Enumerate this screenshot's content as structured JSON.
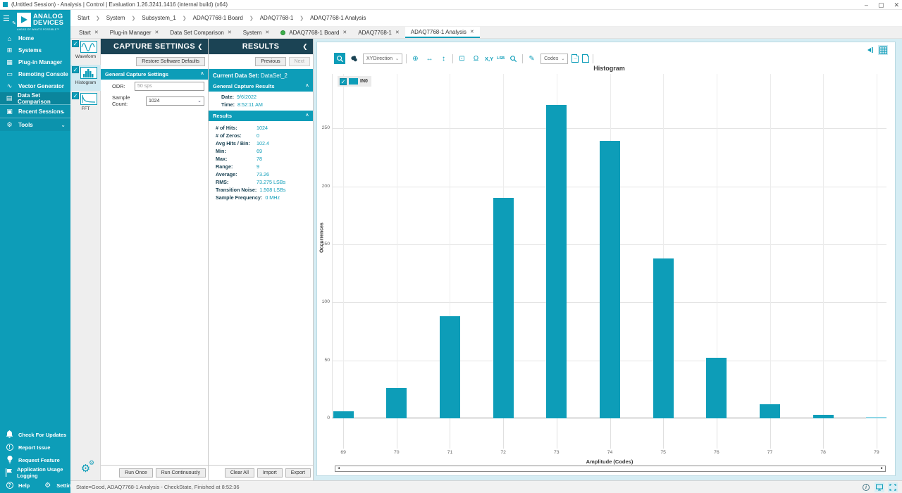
{
  "window": {
    "title": "(Untitled Session) - Analysis | Control | Evaluation 1.26.3241.1416 (internal build) (x64)",
    "controls": {
      "minimize": "–",
      "maximize": "▢",
      "close": "✕"
    }
  },
  "ui": {
    "close_glyph": "✕",
    "breadcrumb_separator": "❯",
    "chevron_up": "˄",
    "chevron_down": "⌄",
    "collapse_left": "❮",
    "check_glyph": "✓",
    "menu_glyph": "☰",
    "pen_glyph": "✎",
    "scroll_left": "◄",
    "scroll_right": "►"
  },
  "colors": {
    "accent": "#0d9db8",
    "panel_header": "#1b4354",
    "pale_background": "#d6edf4",
    "status_green": "#3cae4a"
  },
  "breadcrumb": {
    "items": [
      "Start",
      "System",
      "Subsystem_1",
      "ADAQ7768-1 Board",
      "ADAQ7768-1",
      "ADAQ7768-1 Analysis"
    ]
  },
  "tabs": {
    "items": [
      {
        "label": "Start"
      },
      {
        "label": "Plug-in Manager"
      },
      {
        "label": "Data Set Comparison"
      },
      {
        "label": "System"
      },
      {
        "label": "ADAQ7768-1 Board"
      },
      {
        "label": "ADAQ7768-1"
      },
      {
        "label": "ADAQ7768-1 Analysis"
      }
    ]
  },
  "sidebar": {
    "logo": {
      "line1": "ANALOG",
      "line2": "DEVICES",
      "tagline": "AHEAD OF WHAT'S POSSIBLE™"
    },
    "items": [
      {
        "icon": "⌂",
        "label": "Home"
      },
      {
        "icon": "⊞",
        "label": "Systems"
      },
      {
        "icon": "▦",
        "label": "Plug-in Manager"
      },
      {
        "icon": "▭",
        "label": "Remoting Console"
      },
      {
        "icon": "∿",
        "label": "Vector Generator"
      },
      {
        "icon": "▤",
        "label": "Data Set Comparison"
      },
      {
        "icon": "▣",
        "label": "Recent Sessions"
      },
      {
        "icon": "⚙",
        "label": "Tools"
      }
    ],
    "footer": [
      {
        "label": "Check For Updates"
      },
      {
        "glyph": "!",
        "label": "Report Issue"
      },
      {
        "label": "Request Feature"
      },
      {
        "label": "Application Usage Logging"
      },
      {
        "glyph": "?",
        "label": "Help"
      },
      {
        "icon": "⚙",
        "label": "Settings"
      }
    ]
  },
  "tool_strip": {
    "items": [
      {
        "label": "Waveform"
      },
      {
        "label": "Histogram"
      },
      {
        "label": "FFT"
      }
    ]
  },
  "capture_settings": {
    "title": "CAPTURE SETTINGS",
    "restore_button": "Restore Software Defaults",
    "section": "General Capture Settings",
    "odr_label": "ODR:",
    "odr_value": "50 sps",
    "sample_count_label": "Sample Count:",
    "sample_count_value": "1024",
    "run_once": "Run Once",
    "run_continuously": "Run Continuously"
  },
  "results": {
    "title": "RESULTS",
    "previous": "Previous",
    "next": "Next",
    "current_data_set_label": "Current Data Set:",
    "current_data_set": "DataSet_2",
    "general_section": "General Capture Results",
    "date_label": "Date:",
    "date": "9/6/2022",
    "time_label": "Time:",
    "time": "8:52:11 AM",
    "results_section": "Results",
    "rows": [
      {
        "label": "# of Hits:",
        "value": "1024"
      },
      {
        "label": "# of Zeros:",
        "value": "0"
      },
      {
        "label": "Avg Hits / Bin:",
        "value": "102.4"
      },
      {
        "label": "Min:",
        "value": "69"
      },
      {
        "label": "Max:",
        "value": "78"
      },
      {
        "label": "Range:",
        "value": "9"
      },
      {
        "label": "Average:",
        "value": "73.26"
      },
      {
        "label": "RMS:",
        "value": "73.275 LSBs"
      },
      {
        "label": "Transition Noise:",
        "value": "1.508 LSBs"
      },
      {
        "label": "Sample Frequency:",
        "value": "0 MHz"
      }
    ],
    "clear_all": "Clear All",
    "import": "Import",
    "export": "Export"
  },
  "chart_toolbar": {
    "xydirection_label": "XYDirection",
    "coords_label": "X,Y",
    "unit_label": "LSB",
    "omega_glyph": "Ω",
    "move_glyph": "⊕",
    "harrow_glyph": "↔",
    "varrow_glyph": "↕",
    "fit_glyph": "⊡",
    "pencil_glyph": "✎",
    "codes_label": "Codes"
  },
  "chart_data": {
    "type": "bar",
    "title": "Histogram",
    "xlabel": "Amplitude (Codes)",
    "ylabel": "Occurrences",
    "legend": [
      {
        "name": "IN0",
        "color": "#0d9db8",
        "checked": true
      }
    ],
    "legend_position": "top-left",
    "grid": true,
    "categories": [
      69,
      70,
      71,
      72,
      73,
      74,
      75,
      76,
      77,
      78,
      79
    ],
    "values": [
      6,
      26,
      88,
      190,
      270,
      239,
      138,
      52,
      12,
      3,
      0
    ],
    "xlim": [
      68.8,
      79.2
    ],
    "ylim": [
      0,
      297
    ],
    "yticks": [
      0,
      50,
      100,
      150,
      200,
      250
    ],
    "zero_bar_color": "#8fd6e6"
  },
  "status_bar": {
    "text": "State=Good, ADAQ7768-1 Analysis - CheckState, Finished at 8:52:36"
  }
}
